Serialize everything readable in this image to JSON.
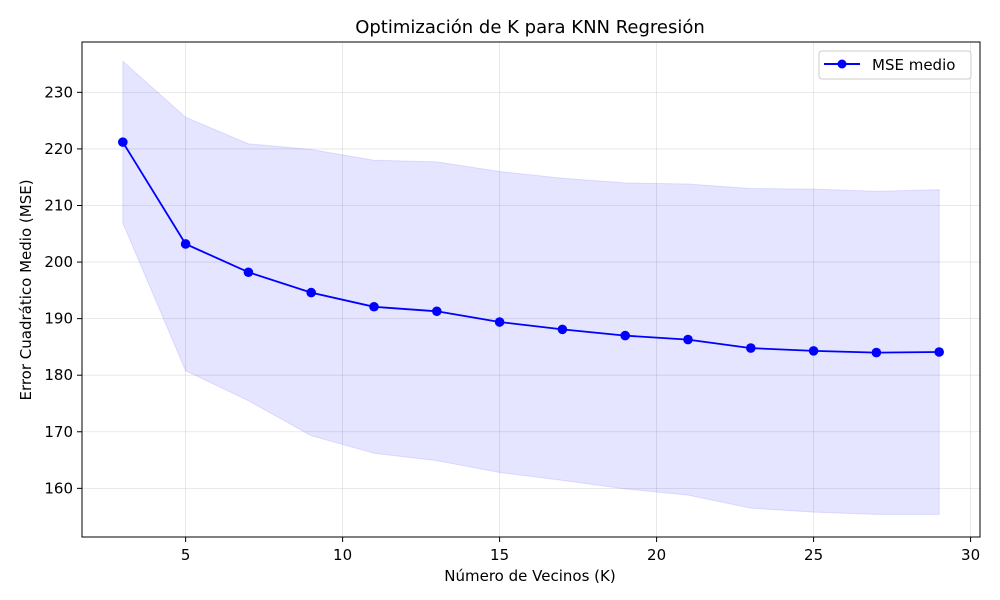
{
  "chart_data": {
    "type": "line",
    "title": "Optimización de K para KNN Regresión",
    "xlabel": "Número de Vecinos (K)",
    "ylabel": "Error Cuadrático Medio (MSE)",
    "xlim": [
      1.7,
      30.3
    ],
    "ylim": [
      151.4,
      238.9
    ],
    "xticks": [
      5,
      10,
      15,
      20,
      25,
      30
    ],
    "yticks": [
      160,
      170,
      180,
      190,
      200,
      210,
      220,
      230
    ],
    "grid": true,
    "legend_position": "top-right",
    "x": [
      3,
      5,
      7,
      9,
      11,
      13,
      15,
      17,
      19,
      21,
      23,
      25,
      27,
      29
    ],
    "series": [
      {
        "name": "MSE medio",
        "color": "#0000ff",
        "marker": "circle",
        "values": [
          221.2,
          203.2,
          198.2,
          194.6,
          192.1,
          191.3,
          189.4,
          188.1,
          187.0,
          186.3,
          184.8,
          184.3,
          184.0,
          184.1
        ]
      }
    ],
    "band": {
      "color": "#0000ff",
      "opacity": 0.1,
      "upper": [
        235.5,
        225.6,
        220.9,
        219.9,
        218.0,
        217.7,
        216.0,
        214.8,
        214.0,
        213.8,
        213.0,
        212.9,
        212.5,
        212.8
      ],
      "lower": [
        206.9,
        180.8,
        175.5,
        169.3,
        166.2,
        164.9,
        162.8,
        161.4,
        159.9,
        158.8,
        156.5,
        155.8,
        155.4,
        155.4
      ]
    }
  }
}
